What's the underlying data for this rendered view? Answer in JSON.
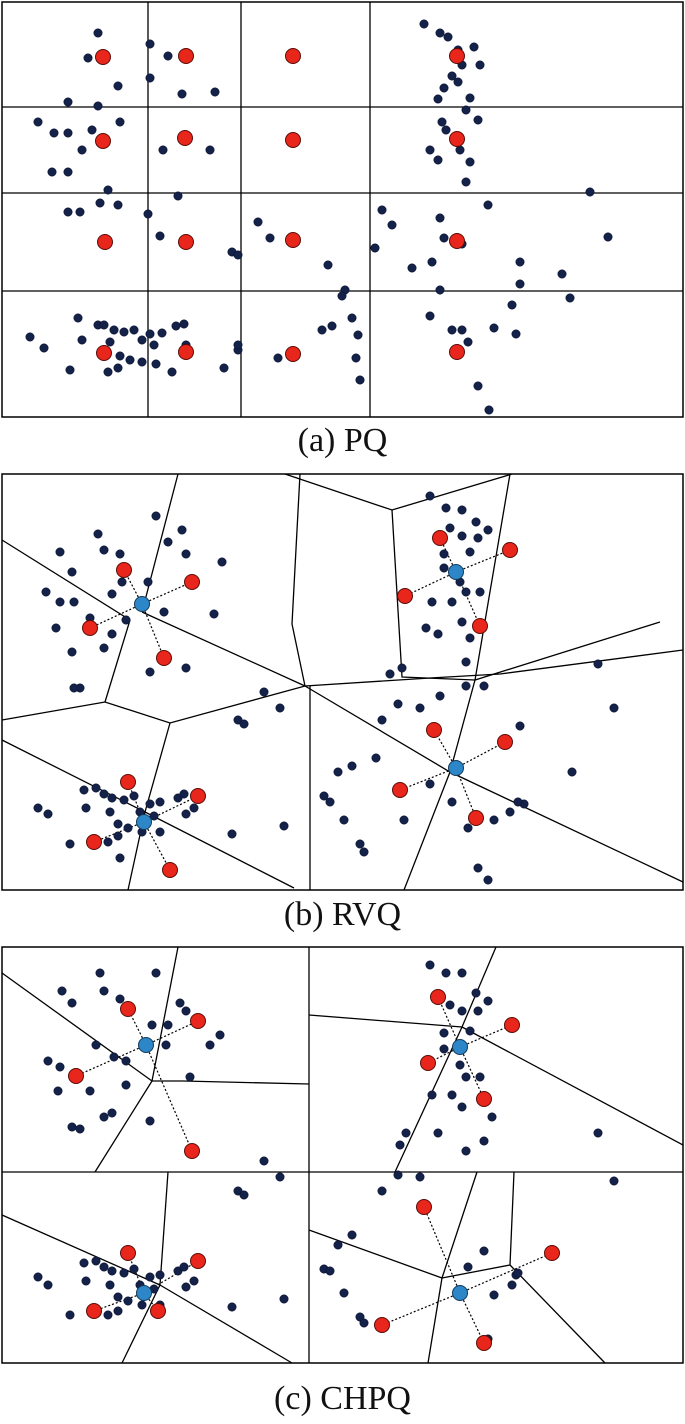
{
  "panels": [
    {
      "id": "pq",
      "caption": "(a) PQ"
    },
    {
      "id": "rvq",
      "caption": "(b) RVQ"
    },
    {
      "id": "chpq",
      "caption": "(c) CHPQ"
    }
  ],
  "legend_colors": {
    "data_point": "#142249",
    "codeword": "#e8261b",
    "centroid": "#2d86c7"
  }
}
